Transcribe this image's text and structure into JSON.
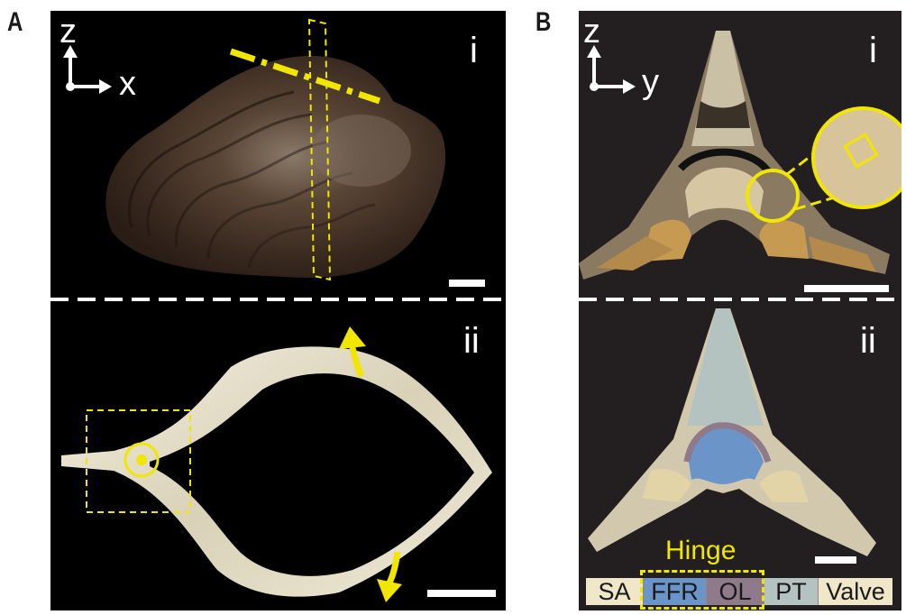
{
  "panels": {
    "a": {
      "letter": "A",
      "top": {
        "numeral": "i",
        "axis_up": "z",
        "axis_right": "x"
      },
      "bottom": {
        "numeral": "ii"
      }
    },
    "b": {
      "letter": "B",
      "top": {
        "numeral": "i",
        "axis_up": "z",
        "axis_right": "y"
      },
      "bottom": {
        "numeral": "ii"
      }
    }
  },
  "hinge": {
    "label": "Hinge",
    "segments": [
      {
        "label": "SA",
        "color": "#f0e6c8"
      },
      {
        "label": "FFR",
        "color": "#6b95c9"
      },
      {
        "label": "OL",
        "color": "#8e7a8a"
      },
      {
        "label": "PT",
        "color": "#b4c3bf"
      },
      {
        "label": "Valve",
        "color": "#f0e6c8"
      }
    ]
  },
  "colors": {
    "highlight": "#f1e600",
    "background": "#000000",
    "panel_b_background": "#231f20"
  }
}
